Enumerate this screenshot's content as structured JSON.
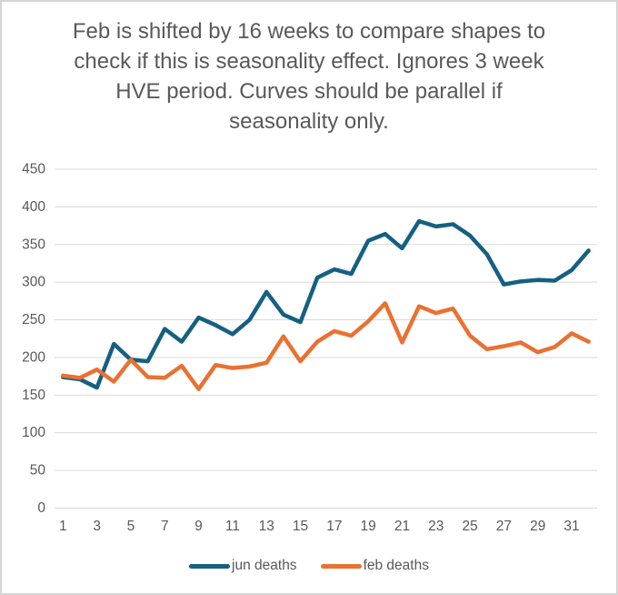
{
  "frame": {
    "background_color": "#ffffff",
    "border_color": "#d6d6d6"
  },
  "chart_data": {
    "type": "line",
    "title": "Feb is shifted by 16 weeks to compare shapes to check if this is seasonality effect.  Ignores 3 week HVE period. Curves should be parallel if seasonality only.",
    "title_color": "#595959",
    "x": [
      1,
      2,
      3,
      4,
      5,
      6,
      7,
      8,
      9,
      10,
      11,
      12,
      13,
      14,
      15,
      16,
      17,
      18,
      19,
      20,
      21,
      22,
      23,
      24,
      25,
      26,
      27,
      28,
      29,
      30,
      31,
      32
    ],
    "x_tick_labels": [
      "1",
      "3",
      "5",
      "7",
      "9",
      "11",
      "13",
      "15",
      "17",
      "19",
      "21",
      "23",
      "25",
      "27",
      "29",
      "31"
    ],
    "ylim": [
      0,
      450
    ],
    "yticks": [
      0,
      50,
      100,
      150,
      200,
      250,
      300,
      350,
      400,
      450
    ],
    "grid": "horizontal",
    "gridline_color": "#d9d9d9",
    "axis_text_color": "#595959",
    "legend_position": "bottom",
    "series": [
      {
        "name": "jun deaths",
        "color": "#156082",
        "values": [
          174,
          171,
          160,
          218,
          197,
          195,
          238,
          221,
          253,
          243,
          231,
          250,
          287,
          257,
          247,
          306,
          317,
          311,
          355,
          364,
          345,
          381,
          374,
          377,
          362,
          337,
          297,
          301,
          303,
          302,
          316,
          342
        ]
      },
      {
        "name": "feb deaths",
        "color": "#E97132",
        "values": [
          176,
          173,
          184,
          168,
          197,
          174,
          173,
          189,
          158,
          190,
          186,
          188,
          193,
          228,
          195,
          221,
          235,
          229,
          248,
          272,
          220,
          268,
          259,
          265,
          229,
          211,
          215,
          220,
          207,
          214,
          232,
          221
        ]
      }
    ]
  }
}
